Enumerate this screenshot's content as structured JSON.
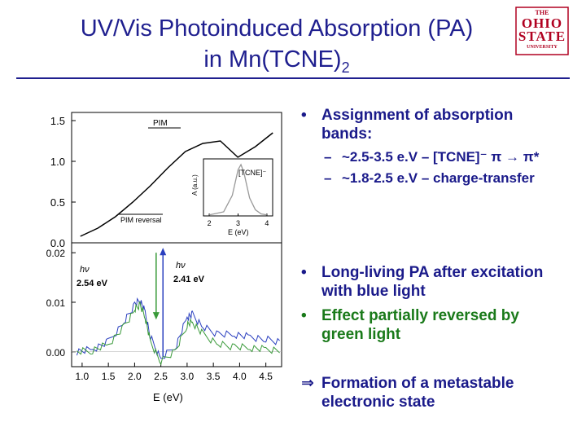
{
  "slide": {
    "title_line1": "UV/Vis Photoinduced Absorption (PA)",
    "title_line2_prefix": "in Mn(TCNE)",
    "title_line2_sub": "2",
    "logo": {
      "line1": "THE",
      "line2": "OHIO",
      "line3": "STATE",
      "line4": "UNIVERSITY"
    }
  },
  "bullets": {
    "b1_line1": "Assignment of absorption",
    "b1_line2": "bands:",
    "sub1": "~2.5-3.5 e.V – [TCNE]⁻  π → π*",
    "sub2": "~1.8-2.5 e.V – charge-transfer",
    "b2_line1": "Long-living PA after excitation",
    "b2_line2": "with blue light",
    "b3_line1": "Effect partially reversed by",
    "b3_line2": "green light",
    "b4_line1": "Formation of a metastable",
    "b4_line2": "electronic state",
    "bullet_char": "•",
    "implies_char": "⇒",
    "dash_char": "–"
  },
  "chart_data": [
    {
      "type": "line",
      "panel": "top",
      "yticks": [
        "1.5",
        "1.0",
        "0.5",
        "0.0"
      ],
      "ylim": [
        0.0,
        1.6
      ],
      "xlim": [
        0.9,
        3.3
      ],
      "annotations": [
        "PIM",
        "PIM reversal"
      ],
      "series": [
        {
          "values_x": [
            1.0,
            1.2,
            1.4,
            1.6,
            1.8,
            2.0,
            2.2,
            2.4,
            2.6,
            2.8,
            3.0,
            3.2
          ],
          "values_y": [
            0.08,
            0.18,
            0.32,
            0.5,
            0.7,
            0.92,
            1.12,
            1.22,
            1.25,
            1.05,
            1.18,
            1.35
          ]
        }
      ]
    },
    {
      "type": "line",
      "panel": "inset",
      "ylabel": "A (a.u.)",
      "xlabel": "E (eV)",
      "xticks": [
        "2",
        "3",
        "4"
      ],
      "annotations": [
        "[TCNE]⁻"
      ],
      "series": [
        {
          "values_x": [
            2.0,
            2.5,
            2.8,
            3.0,
            3.1,
            3.2,
            3.4,
            3.6,
            3.8,
            4.0
          ],
          "values_y": [
            0.02,
            0.08,
            0.4,
            0.9,
            1.0,
            0.85,
            0.35,
            0.12,
            0.04,
            0.02
          ]
        }
      ]
    },
    {
      "type": "line",
      "panel": "bottom",
      "xlabel": "E (eV)",
      "xticks": [
        "1.0",
        "1.5",
        "2.0",
        "2.5",
        "3.0",
        "3.5",
        "4.0",
        "4.5"
      ],
      "yticks": [
        "0.02",
        "0.01",
        "0.00"
      ],
      "xlim": [
        0.8,
        4.8
      ],
      "ylim": [
        -0.003,
        0.022
      ],
      "annotations": [
        {
          "label": "hν",
          "value": "2.54 eV"
        },
        {
          "label": "hν",
          "value": "2.41 eV"
        }
      ],
      "series": [
        {
          "name": "",
          "color": "#2a3fbf",
          "x": [
            0.9,
            1.2,
            1.5,
            1.8,
            2.0,
            2.1,
            2.2,
            2.3,
            2.5,
            2.8,
            3.0,
            3.1,
            3.3,
            3.6,
            3.9,
            4.2,
            4.5,
            4.8
          ],
          "y": [
            0.0,
            0.0005,
            0.002,
            0.006,
            0.0095,
            0.0105,
            0.008,
            0.003,
            -0.0015,
            0.0015,
            0.007,
            0.0075,
            0.005,
            0.0035,
            0.0035,
            0.003,
            0.0025,
            0.002
          ]
        },
        {
          "name": "",
          "color": "#3a9a3a",
          "x": [
            0.9,
            1.2,
            1.5,
            1.8,
            2.0,
            2.1,
            2.2,
            2.3,
            2.5,
            2.8,
            3.0,
            3.1,
            3.3,
            3.6,
            3.9,
            4.2,
            4.5,
            4.8
          ],
          "y": [
            0.0,
            0.0003,
            0.0015,
            0.005,
            0.0085,
            0.0095,
            0.007,
            0.002,
            -0.002,
            0.0005,
            0.0055,
            0.006,
            0.0035,
            0.0015,
            0.001,
            0.0008,
            0.0005,
            0.0003
          ]
        }
      ]
    }
  ]
}
